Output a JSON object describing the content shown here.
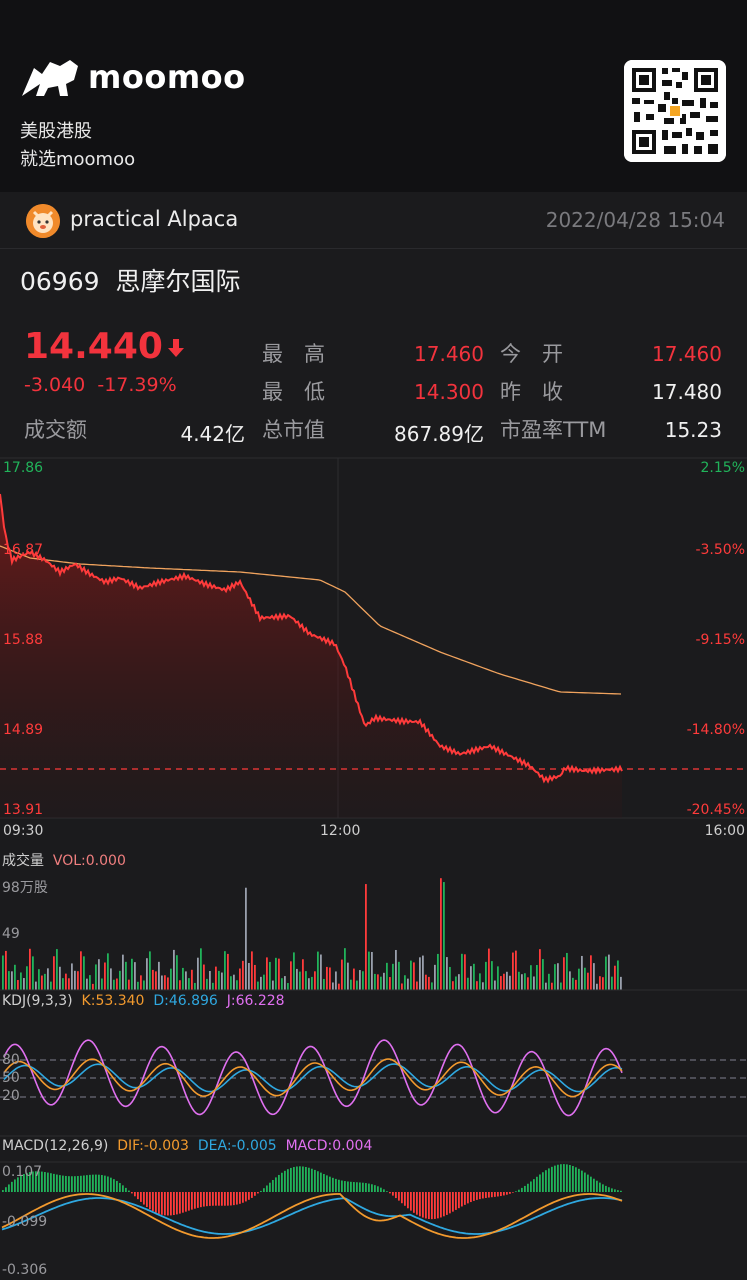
{
  "brand": {
    "name": "moomoo",
    "slogan_line1": "美股港股",
    "slogan_line2": "就选moomoo"
  },
  "user": {
    "name": "practical Alpaca",
    "timestamp": "2022/04/28 15:04"
  },
  "stock": {
    "code": "06969",
    "name": "思摩尔国际",
    "price": "14.440",
    "change": "-3.040",
    "change_pct": "-17.39%",
    "turnover_label": "成交额",
    "turnover": "4.42亿",
    "high_label": "最　高",
    "high": "17.460",
    "low_label": "最　低",
    "low": "14.300",
    "mktcap_label": "总市值",
    "mktcap": "867.89亿",
    "open_label": "今　开",
    "open": "17.460",
    "prevclose_label": "昨　收",
    "prevclose": "17.480",
    "pe_label": "市盈率TTM",
    "pe": "15.23"
  },
  "intraday": {
    "y_left": [
      "17.86",
      "16.87",
      "15.88",
      "14.89",
      "13.91"
    ],
    "y_right": [
      "2.15%",
      "-3.50%",
      "-9.15%",
      "-14.80%",
      "-20.45%"
    ],
    "x_labels": [
      "09:30",
      "12:00",
      "16:00"
    ],
    "colors": {
      "price": "#ff3b3b",
      "avg": "#f0a35e",
      "up": "#21b35a",
      "down": "#ff3b3b"
    }
  },
  "volume": {
    "title": "成交量",
    "vol_text": "VOL:0.000",
    "unit": "98万股",
    "mid": "49"
  },
  "kdj": {
    "title": "KDJ(9,3,3)",
    "k": "K:53.340",
    "d": "D:46.896",
    "j": "J:66.228",
    "levels": [
      "80",
      "50",
      "20"
    ]
  },
  "macd": {
    "title": "MACD(12,26,9)",
    "dif": "DIF:-0.003",
    "dea": "DEA:-0.005",
    "macd": "MACD:0.004",
    "top": "0.107",
    "mid": "-0.099",
    "bottom": "-0.306"
  }
}
